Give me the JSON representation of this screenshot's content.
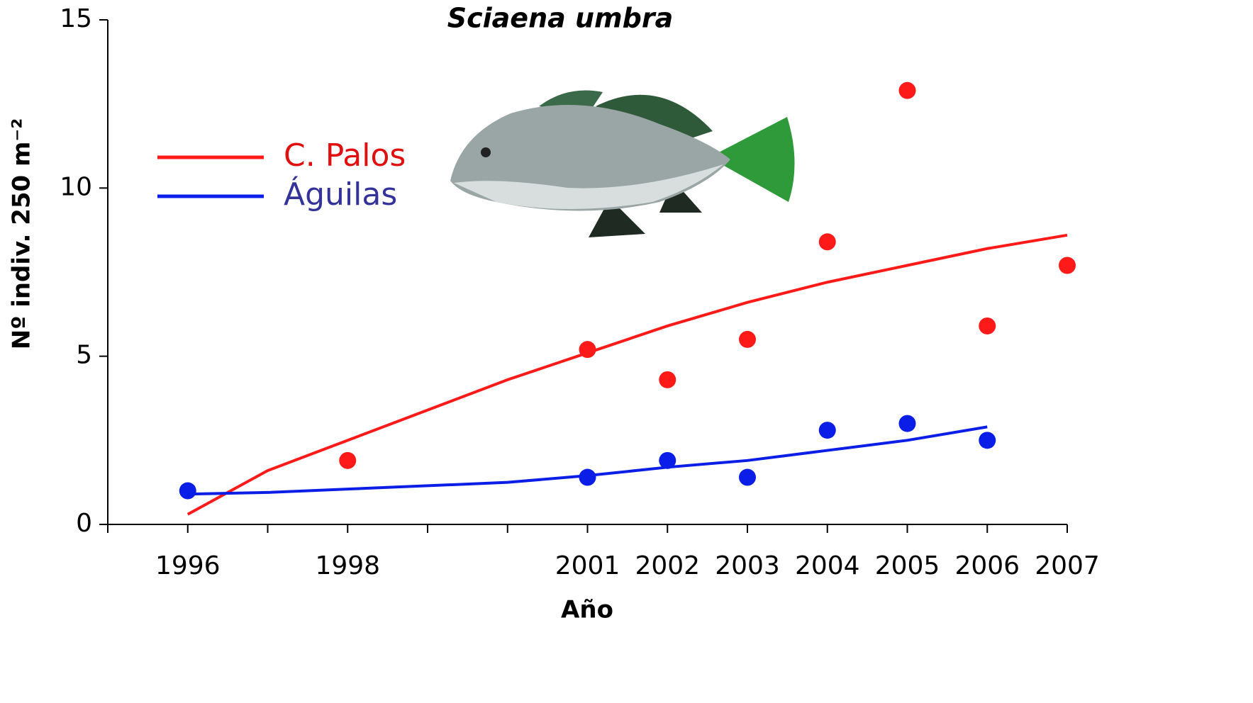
{
  "chart_data": {
    "type": "scatter",
    "title": "Sciaena umbra",
    "x_label": "Año",
    "y_label": "Nº indiv. 250 m⁻²",
    "xlim": [
      1995,
      2007
    ],
    "xticks": [
      1996,
      1998,
      2001,
      2002,
      2003,
      2004,
      2005,
      2006,
      2007
    ],
    "xticks_minor": [
      1995,
      1997,
      1999,
      2000
    ],
    "ylim": [
      0,
      15
    ],
    "yticks": [
      0,
      5,
      10,
      15
    ],
    "legend": "upper left",
    "series": [
      {
        "name": "C. Palos",
        "color": "#ff1a1a",
        "x": [
          1998,
          2001,
          2002,
          2003,
          2004,
          2005,
          2006,
          2007
        ],
        "values": [
          1.9,
          5.2,
          4.3,
          5.5,
          8.4,
          12.9,
          5.9,
          7.7
        ],
        "trend_x": [
          1996,
          1997,
          1998,
          1999,
          2000,
          2001,
          2002,
          2003,
          2004,
          2005,
          2006,
          2007
        ],
        "trend_values": [
          0.3,
          1.6,
          2.5,
          3.4,
          4.3,
          5.1,
          5.9,
          6.6,
          7.2,
          7.7,
          8.2,
          8.6
        ]
      },
      {
        "name": "Águilas",
        "color": "#0a1ee8",
        "x": [
          1996,
          2001,
          2002,
          2003,
          2004,
          2005,
          2006
        ],
        "values": [
          1.0,
          1.4,
          1.9,
          1.4,
          2.8,
          3.0,
          2.5
        ],
        "trend_x": [
          1996,
          1997,
          1998,
          1999,
          2000,
          2001,
          2002,
          2003,
          2004,
          2005,
          2006
        ],
        "trend_values": [
          0.9,
          0.95,
          1.05,
          1.15,
          1.25,
          1.45,
          1.7,
          1.9,
          2.2,
          2.5,
          2.9
        ]
      }
    ]
  }
}
